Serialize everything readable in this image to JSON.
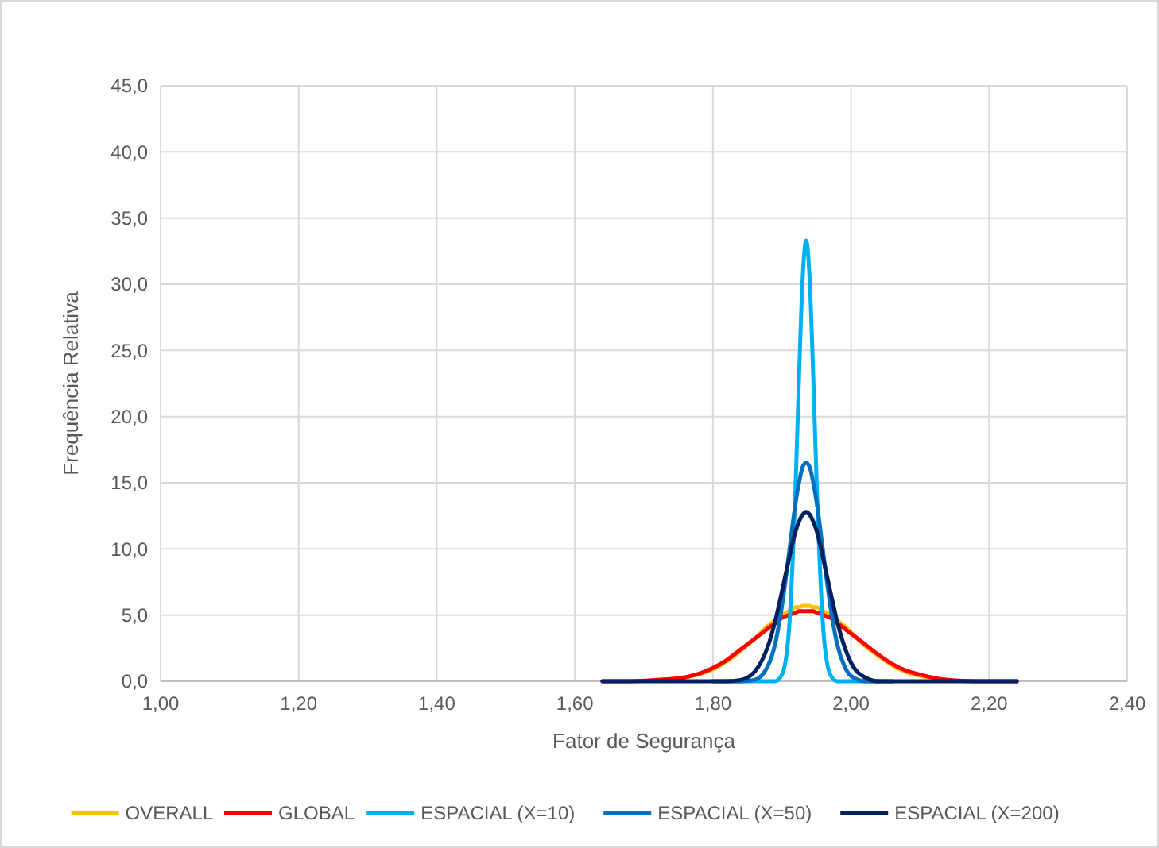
{
  "chart_data": {
    "type": "line",
    "xlabel": "Fator de Segurança",
    "ylabel": "Frequência Relativa",
    "x": [
      1.64,
      1.68,
      1.72,
      1.76,
      1.8,
      1.82,
      1.84,
      1.86,
      1.88,
      1.89,
      1.9,
      1.91,
      1.92,
      1.925,
      1.93,
      1.935,
      1.94,
      1.945,
      1.95,
      1.96,
      1.97,
      1.98,
      1.99,
      2.0,
      2.02,
      2.04,
      2.06,
      2.08,
      2.1,
      2.14,
      2.18,
      2.24
    ],
    "series": [
      {
        "name": "OVERALL",
        "color": "#ffc000",
        "values": [
          null,
          null,
          0.1,
          0.3,
          0.9,
          1.5,
          2.3,
          3.2,
          4.2,
          4.6,
          5.0,
          5.3,
          5.6,
          5.6,
          5.7,
          5.7,
          5.7,
          5.6,
          5.6,
          5.3,
          5.0,
          4.6,
          4.2,
          3.7,
          2.7,
          1.9,
          1.2,
          0.7,
          0.4,
          0.1,
          null,
          null
        ]
      },
      {
        "name": "GLOBAL",
        "color": "#ff0000",
        "values": [
          0,
          0,
          0.1,
          0.3,
          1.0,
          1.6,
          2.4,
          3.2,
          4.0,
          4.4,
          4.8,
          5.0,
          5.2,
          5.3,
          5.3,
          5.3,
          5.3,
          5.3,
          5.2,
          5.0,
          4.8,
          4.4,
          4.0,
          3.6,
          2.8,
          2.0,
          1.3,
          0.8,
          0.5,
          0.1,
          0,
          0
        ]
      },
      {
        "name": "ESPACIAL (X=10)",
        "color": "#00b0f0",
        "values": [
          null,
          null,
          null,
          null,
          null,
          0,
          0,
          0,
          0,
          0,
          0.5,
          3.8,
          15.3,
          23.5,
          30.5,
          33.3,
          30.5,
          23.5,
          15.3,
          3.8,
          0.5,
          0,
          0,
          0,
          0,
          0,
          null,
          null,
          null,
          null,
          null,
          null
        ]
      },
      {
        "name": "ESPACIAL (X=50)",
        "color": "#0070c0",
        "values": [
          null,
          null,
          null,
          null,
          0,
          0,
          0,
          0.1,
          1.2,
          2.8,
          5.7,
          9.6,
          13.6,
          15.1,
          16.2,
          16.5,
          16.2,
          15.1,
          13.6,
          9.6,
          5.7,
          2.8,
          1.2,
          0.4,
          0,
          0,
          0,
          null,
          null,
          null,
          null,
          null
        ]
      },
      {
        "name": "ESPACIAL (X=200)",
        "color": "#002060",
        "values": [
          0,
          0,
          0,
          0,
          0,
          0,
          0.1,
          0.7,
          2.7,
          4.5,
          6.8,
          9.2,
          11.4,
          12.1,
          12.6,
          12.8,
          12.6,
          12.1,
          11.4,
          9.2,
          6.8,
          4.5,
          2.7,
          1.4,
          0.3,
          0,
          0,
          0,
          0,
          0,
          0,
          0
        ]
      }
    ],
    "xlim": [
      1.0,
      2.4
    ],
    "xticks": [
      {
        "value": 1.0,
        "label": "1,00"
      },
      {
        "value": 1.2,
        "label": "1,20"
      },
      {
        "value": 1.4,
        "label": "1,40"
      },
      {
        "value": 1.6,
        "label": "1,60"
      },
      {
        "value": 1.8,
        "label": "1,80"
      },
      {
        "value": 2.0,
        "label": "2,00"
      },
      {
        "value": 2.2,
        "label": "2,20"
      },
      {
        "value": 2.4,
        "label": "2,40"
      }
    ],
    "ylim": [
      0,
      45
    ],
    "yticks": [
      {
        "value": 0,
        "label": "0,0"
      },
      {
        "value": 5,
        "label": "5,0"
      },
      {
        "value": 10,
        "label": "10,0"
      },
      {
        "value": 15,
        "label": "15,0"
      },
      {
        "value": 20,
        "label": "20,0"
      },
      {
        "value": 25,
        "label": "25,0"
      },
      {
        "value": 30,
        "label": "30,0"
      },
      {
        "value": 35,
        "label": "35,0"
      },
      {
        "value": 40,
        "label": "40,0"
      },
      {
        "value": 45,
        "label": "45,0"
      }
    ],
    "grid": true,
    "legend": "bottom",
    "marker": "none",
    "line_style": "solid"
  }
}
